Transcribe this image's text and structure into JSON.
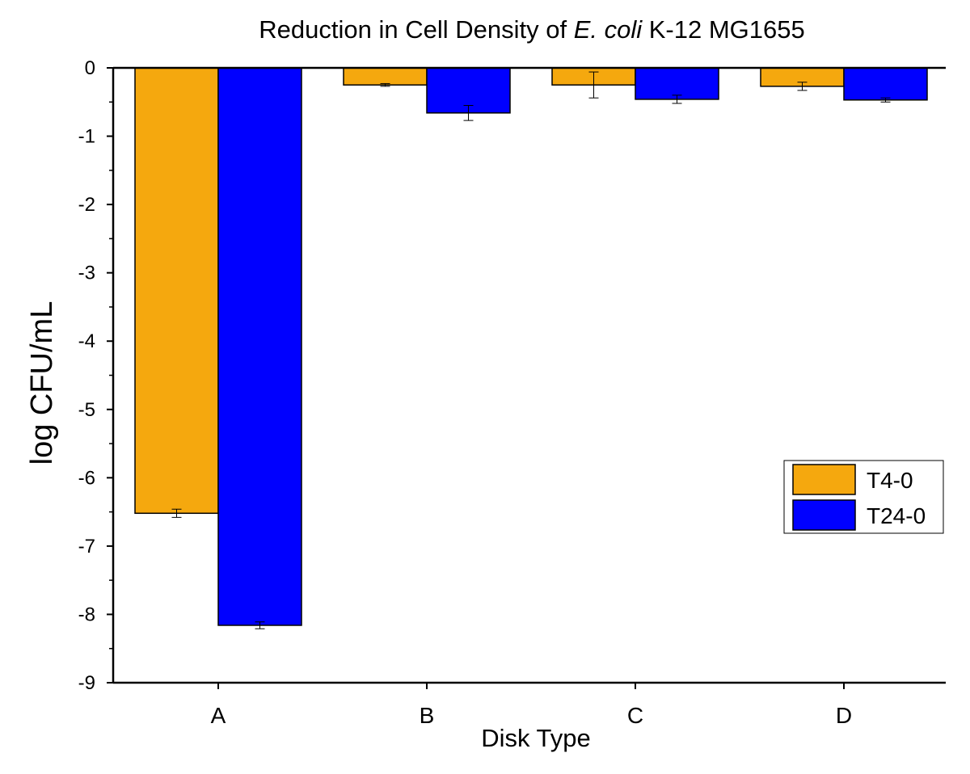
{
  "chart_data": {
    "type": "bar",
    "title_parts": {
      "prefix": "Reduction in Cell Density of ",
      "italic": "E. coli",
      "suffix": " K-12 MG1655"
    },
    "xlabel": "Disk Type",
    "ylabel": "log CFU/mL",
    "categories": [
      "A",
      "B",
      "C",
      "D"
    ],
    "ylim": [
      -9,
      0
    ],
    "yticks": [
      0,
      -1,
      -2,
      -3,
      -4,
      -5,
      -6,
      -7,
      -8,
      -9
    ],
    "series": [
      {
        "name": "T4-0",
        "color": "#F5A80E",
        "values": [
          -6.52,
          -0.25,
          -0.25,
          -0.27
        ],
        "errors": [
          0.06,
          0.02,
          0.19,
          0.06
        ]
      },
      {
        "name": "T24-0",
        "color": "#0000FF",
        "values": [
          -8.16,
          -0.66,
          -0.46,
          -0.47
        ],
        "errors": [
          0.05,
          0.11,
          0.06,
          0.03
        ]
      }
    ],
    "legend_position": "right",
    "grid": false
  }
}
